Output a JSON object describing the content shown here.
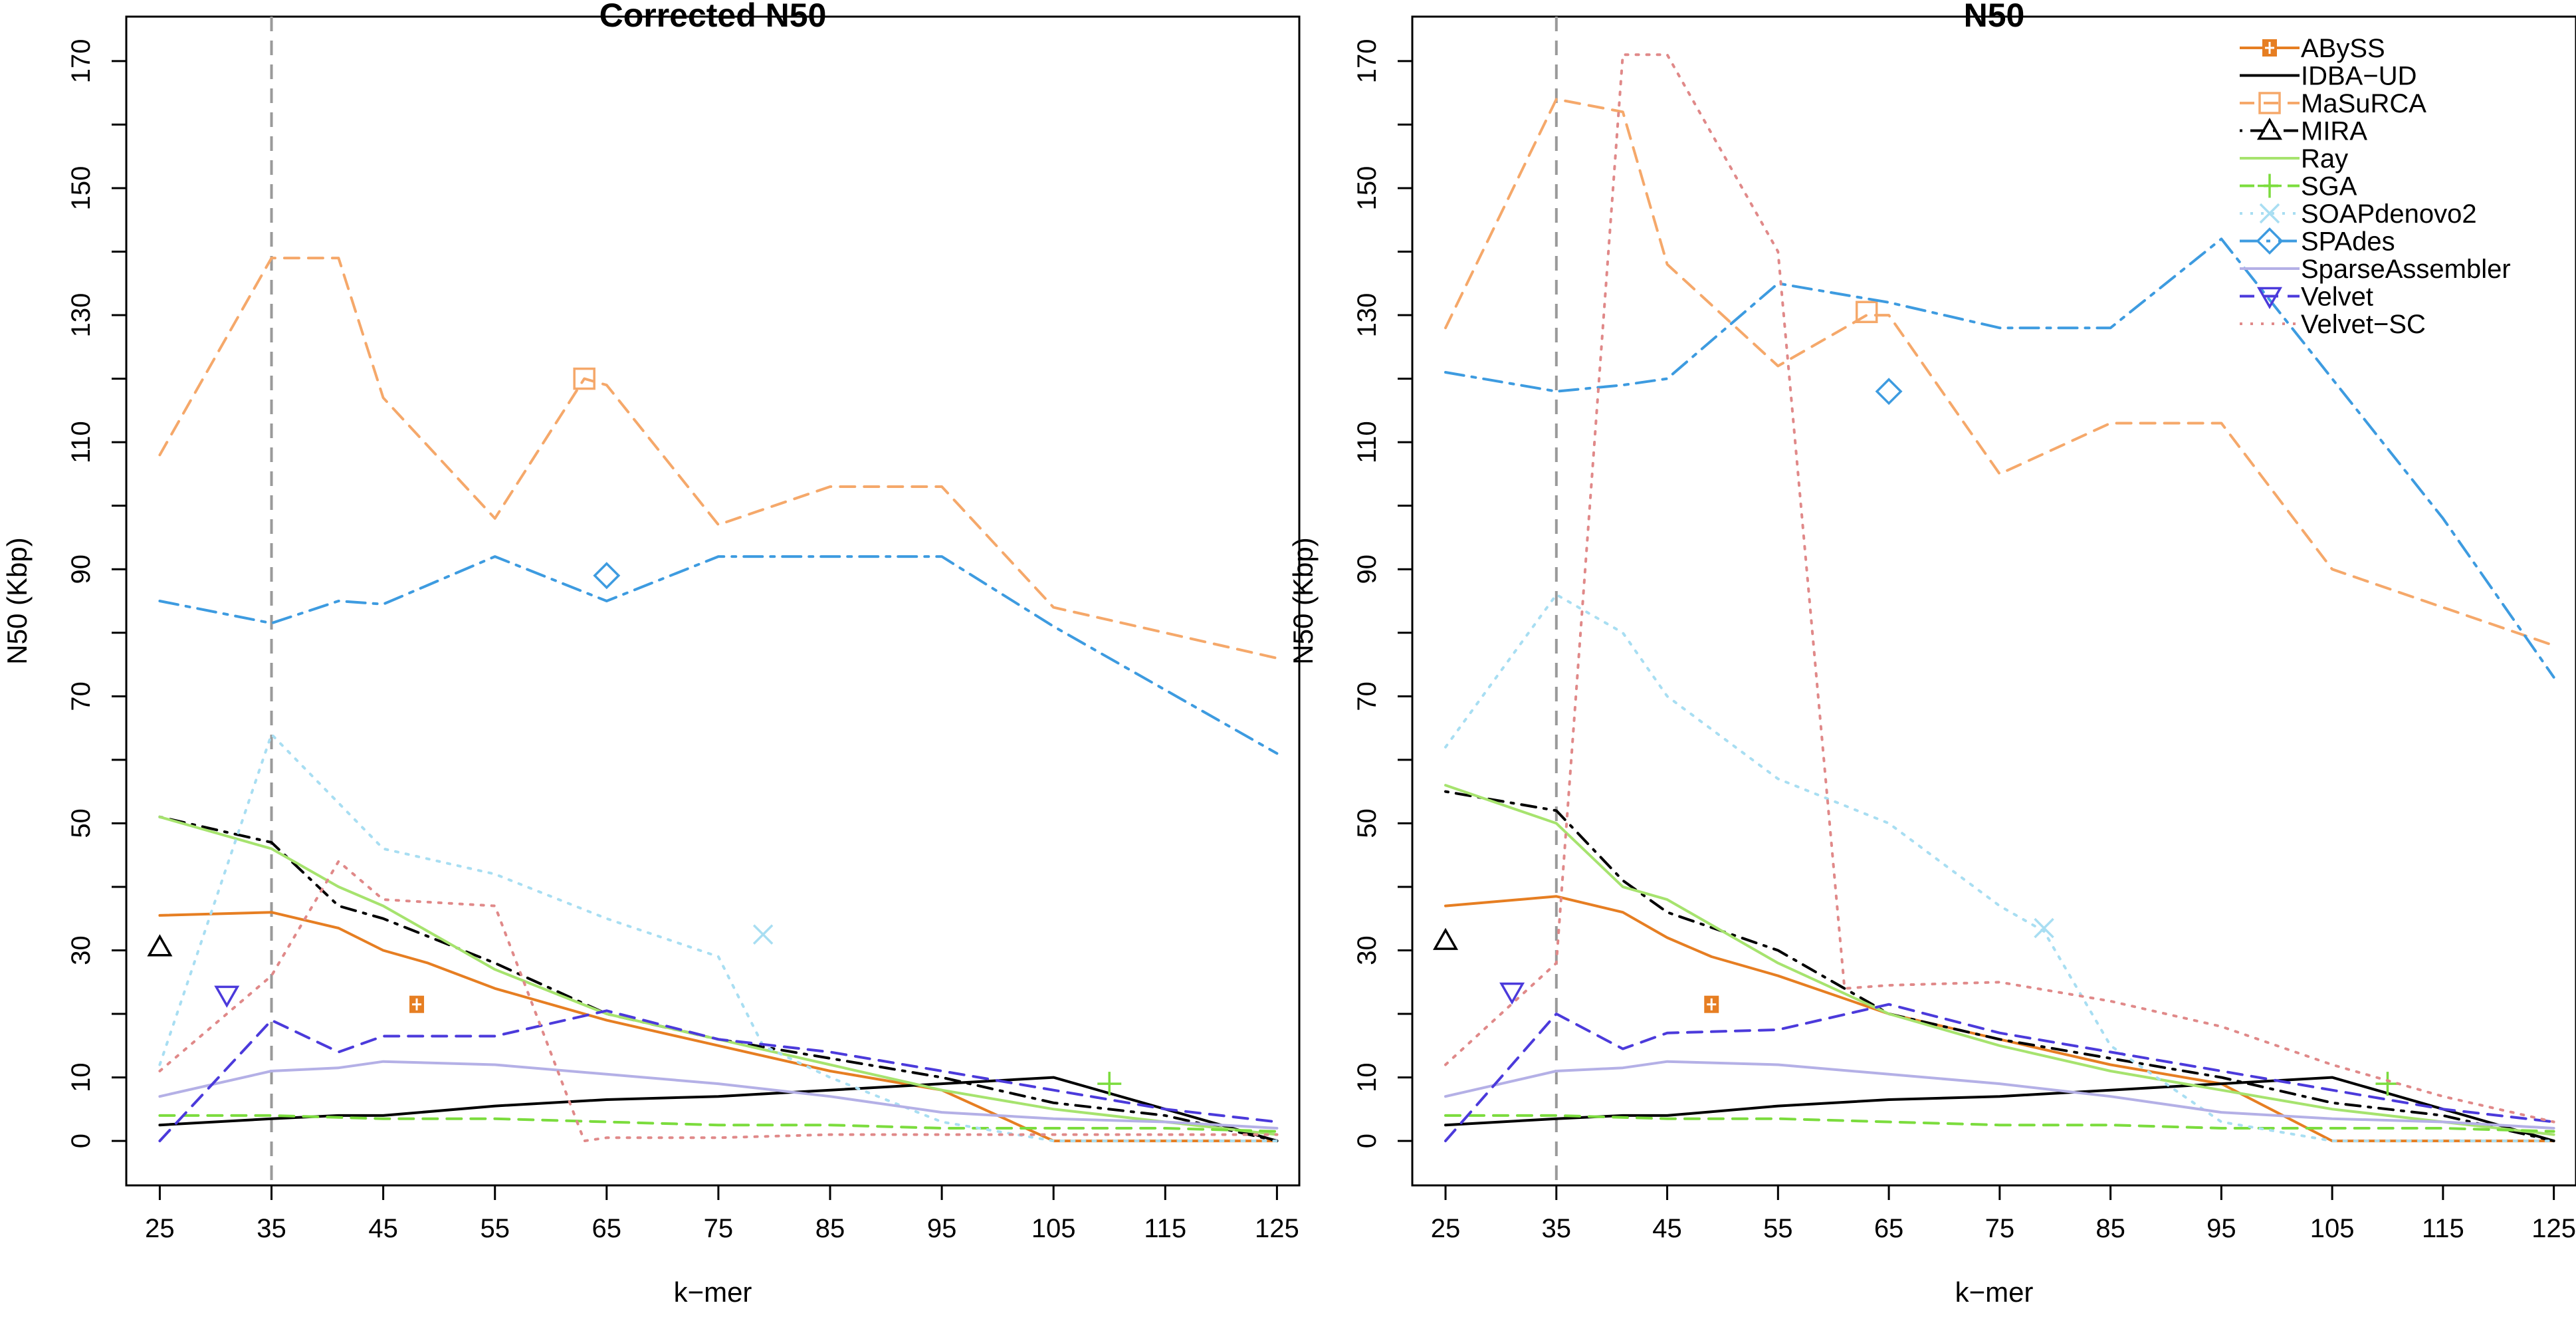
{
  "chart_data": [
    {
      "type": "line",
      "title": "Corrected N50",
      "xlabel": "k−mer",
      "ylabel": "N50 (Kbp)",
      "xlim": [
        22,
        127
      ],
      "ylim": [
        -7,
        177
      ],
      "x_ticks": [
        "25",
        "35",
        "45",
        "55",
        "65",
        "75",
        "85",
        "95",
        "105",
        "115",
        "125"
      ],
      "y_ticks": [
        "0",
        "10",
        "30",
        "50",
        "70",
        "90",
        "110",
        "130",
        "150",
        "170"
      ],
      "reference_line_x": 35,
      "series": [
        {
          "name": "ABySS",
          "color": "#E67E22",
          "dash": "solid",
          "marker": "square-plus",
          "x": [
            25,
            35,
            41,
            45,
            49,
            55,
            65,
            75,
            85,
            95,
            105,
            115,
            125
          ],
          "y": [
            35.5,
            36,
            33.5,
            30,
            28,
            24,
            19,
            15,
            11,
            8,
            0,
            0,
            0
          ],
          "marker_point": [
            48,
            21.5
          ]
        },
        {
          "name": "IDBA−UD",
          "color": "#000000",
          "dash": "solid",
          "marker": "none",
          "x": [
            25,
            35,
            41,
            45,
            55,
            65,
            75,
            85,
            95,
            105,
            115,
            125
          ],
          "y": [
            2.5,
            3.5,
            4,
            4,
            5.5,
            6.5,
            7,
            8,
            9,
            10,
            5,
            0
          ]
        },
        {
          "name": "MaSuRCA",
          "color": "#F5A86A",
          "dash": "dashed",
          "marker": "square",
          "x": [
            25,
            35,
            41,
            45,
            55,
            63,
            65,
            75,
            85,
            95,
            105,
            115,
            125
          ],
          "y": [
            108,
            139,
            139,
            117,
            98,
            120,
            119,
            97,
            103,
            103,
            84,
            80,
            76
          ],
          "marker_point": [
            63,
            120
          ]
        },
        {
          "name": "MIRA",
          "color": "#000000",
          "dash": "dotdash",
          "marker": "triangle",
          "x": [
            25,
            35,
            41,
            45,
            55,
            65,
            75,
            85,
            95,
            105,
            115,
            125
          ],
          "y": [
            51,
            47,
            37,
            35,
            28,
            20,
            16,
            13,
            10,
            6,
            4,
            0
          ],
          "marker_point": [
            25,
            30.5
          ]
        },
        {
          "name": "Ray",
          "color": "#A6E36E",
          "dash": "solid",
          "marker": "none",
          "x": [
            25,
            35,
            41,
            45,
            55,
            65,
            75,
            85,
            95,
            105,
            115,
            125
          ],
          "y": [
            51,
            46,
            40,
            37,
            27,
            20,
            16,
            12,
            8,
            5,
            3,
            1
          ]
        },
        {
          "name": "SGA",
          "color": "#7BDC3D",
          "dash": "dashed",
          "marker": "plus",
          "x": [
            25,
            35,
            45,
            55,
            65,
            75,
            85,
            95,
            105,
            115,
            125
          ],
          "y": [
            4,
            4,
            3.5,
            3.5,
            3,
            2.5,
            2.5,
            2,
            2,
            2,
            1.5
          ],
          "marker_point": [
            110,
            9
          ]
        },
        {
          "name": "SOAPdenovo2",
          "color": "#A8DEF2",
          "dash": "dotted",
          "marker": "x",
          "x": [
            25,
            35,
            45,
            55,
            65,
            75,
            79,
            85,
            95,
            105,
            115,
            125
          ],
          "y": [
            12,
            64,
            46,
            42,
            35,
            29,
            15,
            10,
            3,
            0,
            0,
            0
          ],
          "marker_point": [
            79,
            32.5
          ]
        },
        {
          "name": "SPAdes",
          "color": "#3D9BE0",
          "dash": "dashdot",
          "marker": "diamond",
          "x": [
            25,
            35,
            41,
            45,
            55,
            65,
            75,
            85,
            95,
            105,
            115,
            125
          ],
          "y": [
            85,
            81.5,
            85,
            84.5,
            92,
            85,
            92,
            92,
            92,
            81,
            71,
            61
          ],
          "marker_point": [
            65,
            89
          ]
        },
        {
          "name": "SparseAssembler",
          "color": "#B4B0E6",
          "dash": "solid",
          "marker": "none",
          "x": [
            25,
            35,
            41,
            45,
            55,
            65,
            75,
            85,
            95,
            105,
            115,
            125
          ],
          "y": [
            7,
            11,
            11.5,
            12.5,
            12,
            10.5,
            9,
            7,
            4.5,
            3.5,
            3,
            2
          ]
        },
        {
          "name": "Velvet",
          "color": "#4B3ADB",
          "dash": "dashed",
          "marker": "triangle-down",
          "x": [
            25,
            35,
            41,
            45,
            55,
            65,
            75,
            85,
            95,
            105,
            115,
            125
          ],
          "y": [
            0,
            19,
            14,
            16.5,
            16.5,
            20.5,
            16,
            14,
            11,
            8,
            5,
            3
          ],
          "marker_point": [
            31,
            23
          ]
        },
        {
          "name": "Velvet−SC",
          "color": "#E08989",
          "dash": "dotted",
          "marker": "none",
          "x": [
            25,
            35,
            41,
            45,
            55,
            63,
            65,
            75,
            85,
            95,
            105,
            115,
            125
          ],
          "y": [
            11,
            26,
            44,
            38,
            37,
            0,
            0.5,
            0.5,
            1,
            1,
            1,
            1,
            1
          ]
        }
      ]
    },
    {
      "type": "line",
      "title": "N50",
      "xlabel": "k−mer",
      "ylabel": "N50 (Kbp)",
      "xlim": [
        22,
        127
      ],
      "ylim": [
        -7,
        177
      ],
      "x_ticks": [
        "25",
        "35",
        "45",
        "55",
        "65",
        "75",
        "85",
        "95",
        "105",
        "115",
        "125"
      ],
      "y_ticks": [
        "0",
        "10",
        "30",
        "50",
        "70",
        "90",
        "110",
        "130",
        "150",
        "170"
      ],
      "reference_line_x": 35,
      "legend": {
        "position": "top-right",
        "entries": [
          "ABySS",
          "IDBA−UD",
          "MaSuRCA",
          "MIRA",
          "Ray",
          "SGA",
          "SOAPdenovo2",
          "SPAdes",
          "SparseAssembler",
          "Velvet",
          "Velvet−SC"
        ]
      },
      "series": [
        {
          "name": "ABySS",
          "color": "#E67E22",
          "dash": "solid",
          "marker": "square-plus",
          "x": [
            25,
            35,
            41,
            45,
            49,
            55,
            65,
            75,
            85,
            95,
            105,
            115,
            125
          ],
          "y": [
            37,
            38.5,
            36,
            32,
            29,
            26,
            20,
            16,
            12,
            9,
            0,
            0,
            0
          ],
          "marker_point": [
            49,
            21.5
          ]
        },
        {
          "name": "IDBA−UD",
          "color": "#000000",
          "dash": "solid",
          "marker": "none",
          "x": [
            25,
            35,
            41,
            45,
            55,
            65,
            75,
            85,
            95,
            105,
            115,
            125
          ],
          "y": [
            2.5,
            3.5,
            4,
            4,
            5.5,
            6.5,
            7,
            8,
            9,
            10,
            5,
            0
          ]
        },
        {
          "name": "MaSuRCA",
          "color": "#F5A86A",
          "dash": "dashed",
          "marker": "square",
          "x": [
            25,
            35,
            41,
            45,
            55,
            63,
            65,
            75,
            85,
            95,
            105,
            115,
            125
          ],
          "y": [
            128,
            164,
            162,
            138,
            122,
            130,
            130,
            105,
            113,
            113,
            90,
            84,
            78
          ],
          "marker_point": [
            63,
            130.5
          ]
        },
        {
          "name": "MIRA",
          "color": "#000000",
          "dash": "dotdash",
          "marker": "triangle",
          "x": [
            25,
            35,
            41,
            45,
            55,
            65,
            75,
            85,
            95,
            105,
            115,
            125
          ],
          "y": [
            55,
            52,
            41,
            36,
            30,
            20,
            16,
            13,
            10,
            6,
            4,
            0
          ],
          "marker_point": [
            25,
            31.5
          ]
        },
        {
          "name": "Ray",
          "color": "#A6E36E",
          "dash": "solid",
          "marker": "none",
          "x": [
            25,
            35,
            41,
            45,
            55,
            65,
            75,
            85,
            95,
            105,
            115,
            125
          ],
          "y": [
            56,
            50,
            40,
            38,
            28,
            20,
            15,
            11,
            8,
            5,
            3,
            1
          ]
        },
        {
          "name": "SGA",
          "color": "#7BDC3D",
          "dash": "dashed",
          "marker": "plus",
          "x": [
            25,
            35,
            45,
            55,
            65,
            75,
            85,
            95,
            105,
            115,
            125
          ],
          "y": [
            4,
            4,
            3.5,
            3.5,
            3,
            2.5,
            2.5,
            2,
            2,
            2,
            1.5
          ],
          "marker_point": [
            110,
            9
          ]
        },
        {
          "name": "SOAPdenovo2",
          "color": "#A8DEF2",
          "dash": "dotted",
          "marker": "x",
          "x": [
            25,
            35,
            41,
            45,
            55,
            65,
            75,
            79,
            85,
            95,
            105,
            115,
            125
          ],
          "y": [
            62,
            86,
            80,
            70,
            57,
            50,
            37,
            33,
            15,
            3,
            0,
            0,
            0
          ],
          "marker_point": [
            79,
            33.5
          ]
        },
        {
          "name": "SPAdes",
          "color": "#3D9BE0",
          "dash": "dashdot",
          "marker": "diamond",
          "x": [
            25,
            35,
            41,
            45,
            55,
            65,
            75,
            85,
            95,
            105,
            115,
            125
          ],
          "y": [
            121,
            118,
            119,
            120,
            135,
            132,
            128,
            128,
            142,
            120,
            98,
            73
          ],
          "marker_point": [
            65,
            118
          ]
        },
        {
          "name": "SparseAssembler",
          "color": "#B4B0E6",
          "dash": "solid",
          "marker": "none",
          "x": [
            25,
            35,
            41,
            45,
            55,
            65,
            75,
            85,
            95,
            105,
            115,
            125
          ],
          "y": [
            7,
            11,
            11.5,
            12.5,
            12,
            10.5,
            9,
            7,
            4.5,
            3.5,
            3,
            2
          ]
        },
        {
          "name": "Velvet",
          "color": "#4B3ADB",
          "dash": "dashed",
          "marker": "triangle-down",
          "x": [
            25,
            35,
            41,
            45,
            55,
            65,
            75,
            85,
            95,
            105,
            115,
            125
          ],
          "y": [
            0,
            20,
            14.5,
            17,
            17.5,
            21.5,
            17,
            14,
            11,
            8,
            5,
            3
          ],
          "marker_point": [
            31,
            23.5
          ]
        },
        {
          "name": "Velvet−SC",
          "color": "#E08989",
          "dash": "dotted",
          "marker": "none",
          "x": [
            25,
            35,
            41,
            45,
            55,
            61,
            65,
            75,
            85,
            95,
            105,
            115,
            125
          ],
          "y": [
            12,
            28,
            171,
            171,
            140,
            24,
            24.5,
            25,
            22,
            18,
            12,
            7,
            3
          ]
        }
      ]
    }
  ]
}
